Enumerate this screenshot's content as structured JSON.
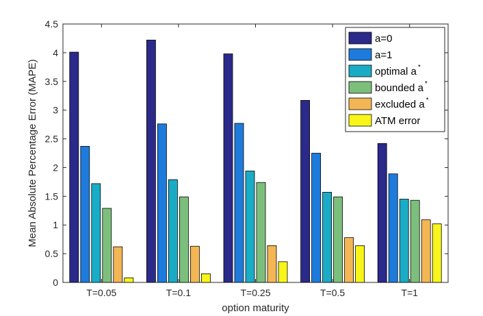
{
  "chart_data": {
    "type": "bar",
    "title": "",
    "xlabel": "option maturity",
    "ylabel": "Mean Absolute Percentage Error (MAPE)",
    "ylim": [
      0,
      4.5
    ],
    "yticks": [
      0,
      0.5,
      1,
      1.5,
      2,
      2.5,
      3,
      3.5,
      4,
      4.5
    ],
    "ytick_labels": [
      "0",
      "0.5",
      "1",
      "1.5",
      "2",
      "2.5",
      "3",
      "3.5",
      "4",
      "4.5"
    ],
    "grid": false,
    "legend_position": "top-right",
    "categories": [
      "T=0.05",
      "T=0.1",
      "T=0.25",
      "T=0.5",
      "T=1"
    ],
    "series": [
      {
        "name": "a=0",
        "sup": "",
        "color": "#2b2a8a",
        "values": [
          4.01,
          4.22,
          3.98,
          3.17,
          2.42
        ]
      },
      {
        "name": "a=1",
        "sup": "",
        "color": "#1e7bdc",
        "values": [
          2.37,
          2.76,
          2.77,
          2.25,
          1.89
        ]
      },
      {
        "name": "optimal a",
        "sup": "*",
        "color": "#1aacc6",
        "values": [
          1.72,
          1.79,
          1.94,
          1.57,
          1.45
        ]
      },
      {
        "name": "bounded a",
        "sup": "*",
        "color": "#7cbf7c",
        "values": [
          1.29,
          1.49,
          1.74,
          1.49,
          1.43
        ]
      },
      {
        "name": "excluded a",
        "sup": "*",
        "color": "#f2b655",
        "values": [
          0.62,
          0.63,
          0.64,
          0.78,
          1.09
        ]
      },
      {
        "name": "ATM error",
        "sup": "",
        "color": "#f7f51a",
        "values": [
          0.08,
          0.15,
          0.36,
          0.64,
          1.02
        ]
      }
    ]
  }
}
